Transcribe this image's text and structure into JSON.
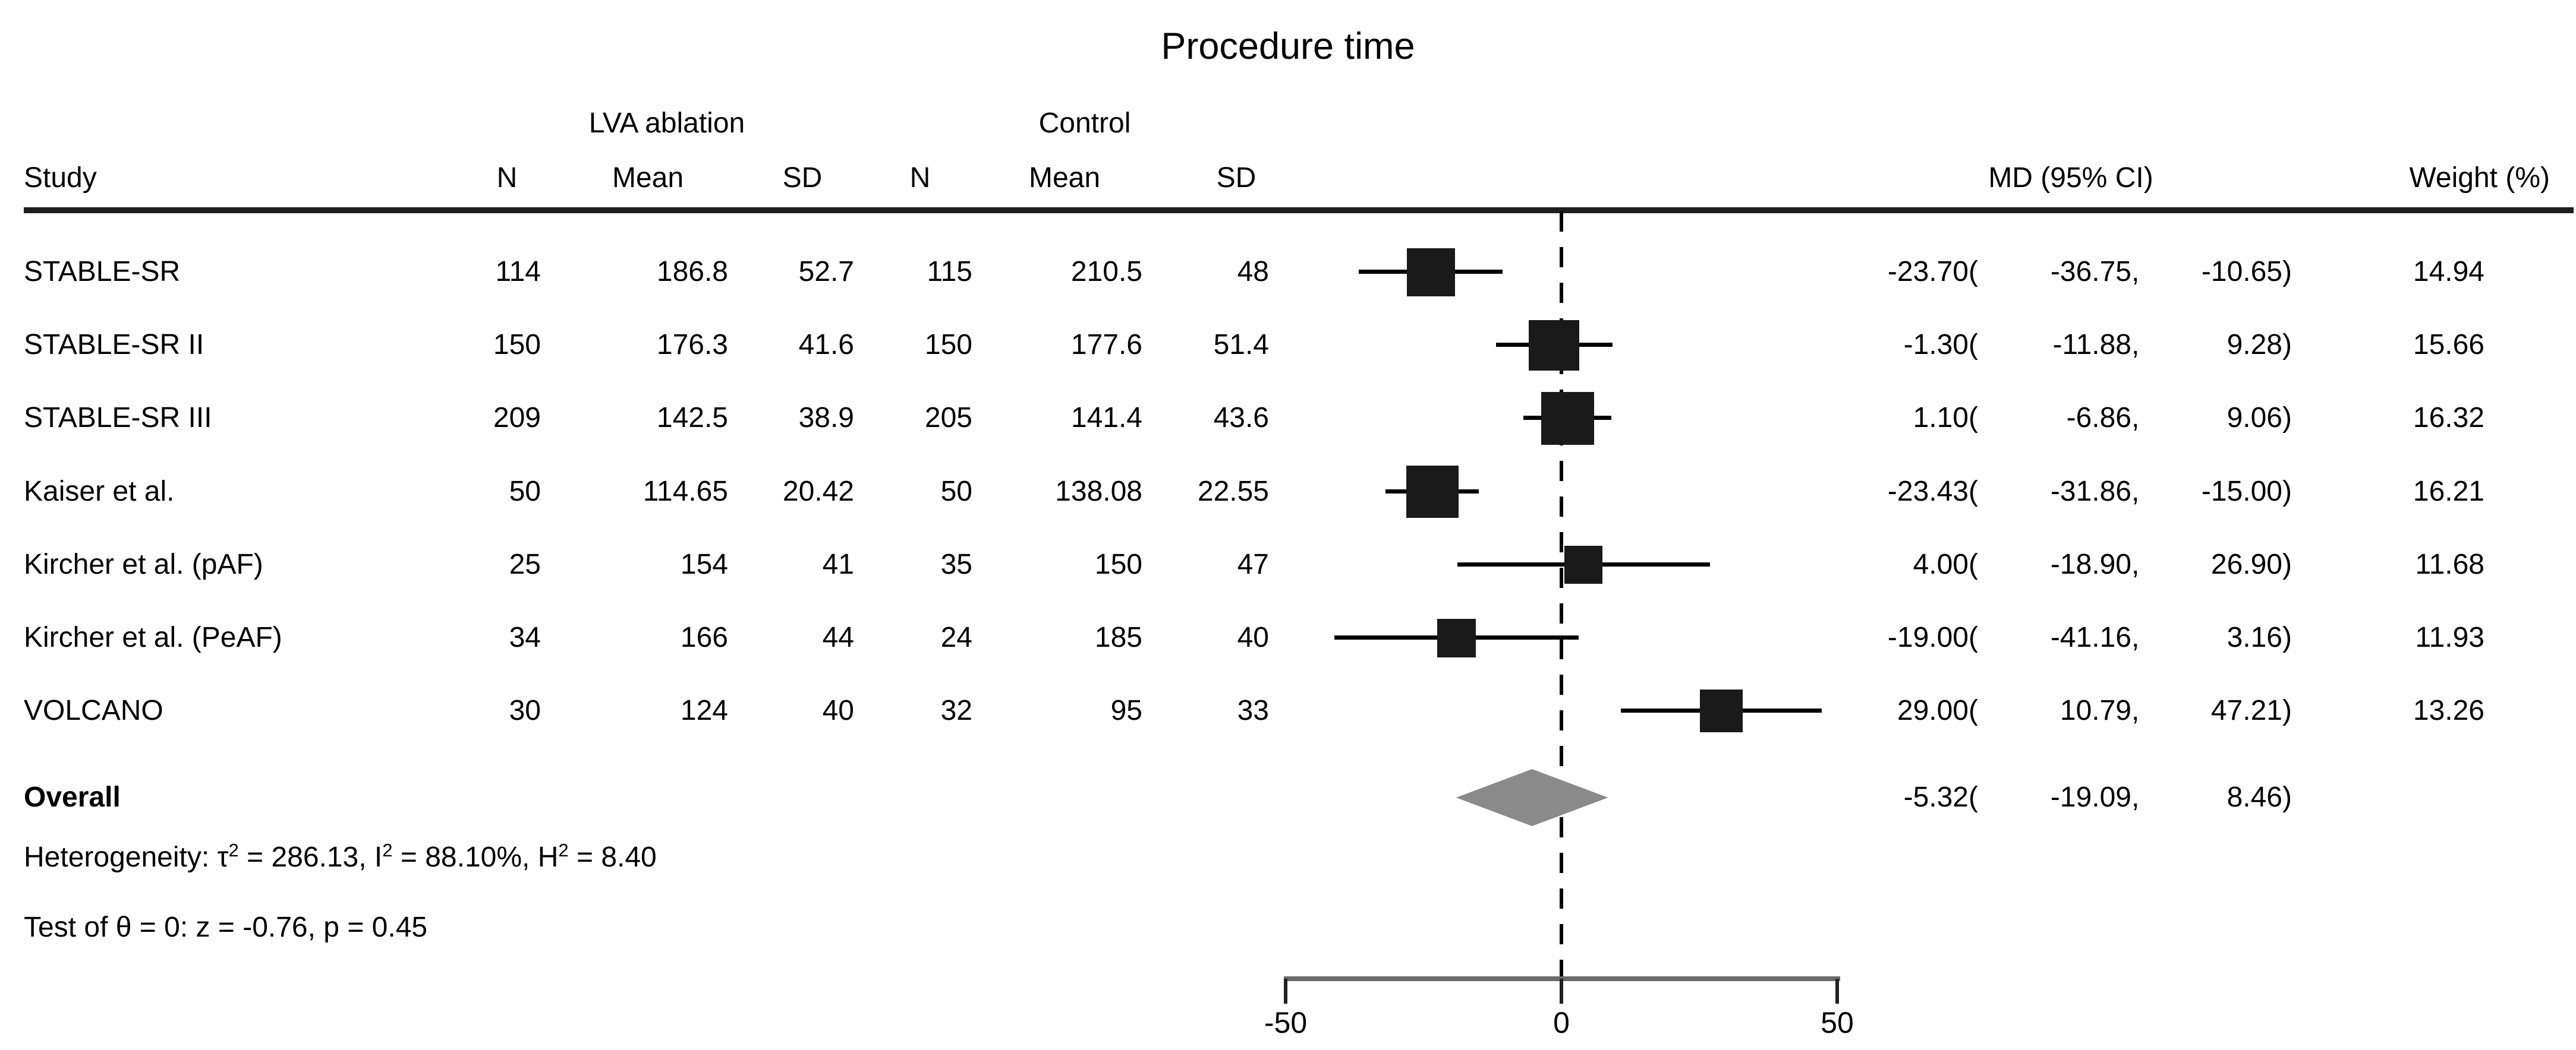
{
  "title": "Procedure time",
  "header": {
    "study": "Study",
    "group1": "LVA ablation",
    "group2": "Control",
    "n": "N",
    "mean": "Mean",
    "sd": "SD",
    "md": "MD (95% CI)",
    "weight": "Weight (%)"
  },
  "rows": [
    {
      "study": "STABLE-SR",
      "n1": "114",
      "mean1": "186.8",
      "sd1": "52.7",
      "n2": "115",
      "mean2": "210.5",
      "sd2": "48",
      "est": "-23.70",
      "lo": "-36.75",
      "hi": "-10.65",
      "weight": "14.94"
    },
    {
      "study": "STABLE-SR II",
      "n1": "150",
      "mean1": "176.3",
      "sd1": "41.6",
      "n2": "150",
      "mean2": "177.6",
      "sd2": "51.4",
      "est": "-1.30",
      "lo": "-11.88",
      "hi": "9.28",
      "weight": "15.66"
    },
    {
      "study": "STABLE-SR III",
      "n1": "209",
      "mean1": "142.5",
      "sd1": "38.9",
      "n2": "205",
      "mean2": "141.4",
      "sd2": "43.6",
      "est": "1.10",
      "lo": "-6.86",
      "hi": "9.06",
      "weight": "16.32"
    },
    {
      "study": "Kaiser et al.",
      "n1": "50",
      "mean1": "114.65",
      "sd1": "20.42",
      "n2": "50",
      "mean2": "138.08",
      "sd2": "22.55",
      "est": "-23.43",
      "lo": "-31.86",
      "hi": "-15.00",
      "weight": "16.21"
    },
    {
      "study": "Kircher et al. (pAF)",
      "n1": "25",
      "mean1": "154",
      "sd1": "41",
      "n2": "35",
      "mean2": "150",
      "sd2": "47",
      "est": "4.00",
      "lo": "-18.90",
      "hi": "26.90",
      "weight": "11.68"
    },
    {
      "study": "Kircher et al. (PeAF)",
      "n1": "34",
      "mean1": "166",
      "sd1": "44",
      "n2": "24",
      "mean2": "185",
      "sd2": "40",
      "est": "-19.00",
      "lo": "-41.16",
      "hi": "3.16",
      "weight": "11.93"
    },
    {
      "study": "VOLCANO",
      "n1": "30",
      "mean1": "124",
      "sd1": "40",
      "n2": "32",
      "mean2": "95",
      "sd2": "33",
      "est": "29.00",
      "lo": "10.79",
      "hi": "47.21",
      "weight": "13.26"
    }
  ],
  "overall": {
    "label": "Overall",
    "est": "-5.32",
    "lo": "-19.09",
    "hi": "8.46"
  },
  "punct": {
    "open": "(",
    "comma": ",",
    "close": ")"
  },
  "heterogeneity": {
    "p0": "Heterogeneity: τ",
    "s0": "2",
    "p1": " = 286.13, I",
    "s1": "2",
    "p2": " = 88.10%, H",
    "s2": "2",
    "p3": " = 8.40"
  },
  "test_line": "Test of θ = 0: z = -0.76, p = 0.45",
  "axis": {
    "tick_labels": [
      "-50",
      "0",
      "50"
    ]
  },
  "colors": {
    "square": "#1a1a1a",
    "whisker": "#000000",
    "diamond": "#8a8a8a",
    "axis_line": "#6b6b6b",
    "tick": "#222222",
    "rule": "#1f1f1f",
    "text": "#000000"
  },
  "chart_data": {
    "type": "forest",
    "title": "Procedure time",
    "effect_measure": "MD",
    "null_line": 0,
    "xlim": [
      -50,
      50
    ],
    "x_ticks": [
      -50,
      0,
      50
    ],
    "groups": [
      "LVA ablation",
      "Control"
    ],
    "studies": [
      {
        "study": "STABLE-SR",
        "lva_n": 114,
        "lva_mean": 186.8,
        "lva_sd": 52.7,
        "ctrl_n": 115,
        "ctrl_mean": 210.5,
        "ctrl_sd": 48,
        "md": -23.7,
        "ci_low": -36.75,
        "ci_high": -10.65,
        "weight_pct": 14.94
      },
      {
        "study": "STABLE-SR II",
        "lva_n": 150,
        "lva_mean": 176.3,
        "lva_sd": 41.6,
        "ctrl_n": 150,
        "ctrl_mean": 177.6,
        "ctrl_sd": 51.4,
        "md": -1.3,
        "ci_low": -11.88,
        "ci_high": 9.28,
        "weight_pct": 15.66
      },
      {
        "study": "STABLE-SR III",
        "lva_n": 209,
        "lva_mean": 142.5,
        "lva_sd": 38.9,
        "ctrl_n": 205,
        "ctrl_mean": 141.4,
        "ctrl_sd": 43.6,
        "md": 1.1,
        "ci_low": -6.86,
        "ci_high": 9.06,
        "weight_pct": 16.32
      },
      {
        "study": "Kaiser et al.",
        "lva_n": 50,
        "lva_mean": 114.65,
        "lva_sd": 20.42,
        "ctrl_n": 50,
        "ctrl_mean": 138.08,
        "ctrl_sd": 22.55,
        "md": -23.43,
        "ci_low": -31.86,
        "ci_high": -15.0,
        "weight_pct": 16.21
      },
      {
        "study": "Kircher et al. (pAF)",
        "lva_n": 25,
        "lva_mean": 154,
        "lva_sd": 41,
        "ctrl_n": 35,
        "ctrl_mean": 150,
        "ctrl_sd": 47,
        "md": 4.0,
        "ci_low": -18.9,
        "ci_high": 26.9,
        "weight_pct": 11.68
      },
      {
        "study": "Kircher et al. (PeAF)",
        "lva_n": 34,
        "lva_mean": 166,
        "lva_sd": 44,
        "ctrl_n": 24,
        "ctrl_mean": 185,
        "ctrl_sd": 40,
        "md": -19.0,
        "ci_low": -41.16,
        "ci_high": 3.16,
        "weight_pct": 11.93
      },
      {
        "study": "VOLCANO",
        "lva_n": 30,
        "lva_mean": 124,
        "lva_sd": 40,
        "ctrl_n": 32,
        "ctrl_mean": 95,
        "ctrl_sd": 33,
        "md": 29.0,
        "ci_low": 10.79,
        "ci_high": 47.21,
        "weight_pct": 13.26
      }
    ],
    "overall": {
      "md": -5.32,
      "ci_low": -19.09,
      "ci_high": 8.46
    },
    "heterogeneity": {
      "tau2": 286.13,
      "I2_pct": 88.1,
      "H2": 8.4
    },
    "test_of_theta": {
      "z": -0.76,
      "p": 0.45
    }
  }
}
